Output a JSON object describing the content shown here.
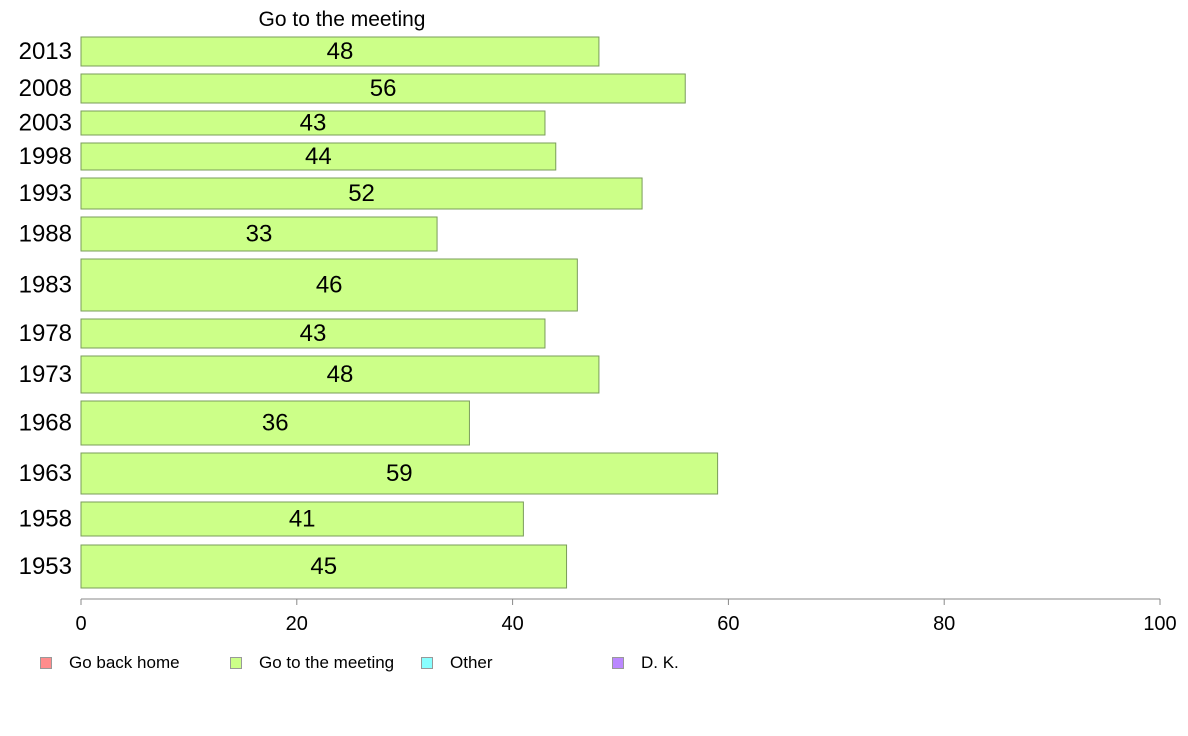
{
  "chart_data": {
    "type": "bar",
    "orientation": "horizontal",
    "stacked": true,
    "categories": [
      "2013",
      "2008",
      "2003",
      "1998",
      "1993",
      "1988",
      "1983",
      "1978",
      "1973",
      "1968",
      "1963",
      "1958",
      "1953"
    ],
    "series": [
      {
        "name": "Go back home",
        "color": "#ff8c8c",
        "values": [
          null,
          null,
          null,
          null,
          null,
          null,
          null,
          null,
          null,
          null,
          null,
          null,
          null
        ]
      },
      {
        "name": "Go to the meeting",
        "color": "#ccff88",
        "values": [
          48,
          56,
          43,
          44,
          52,
          33,
          46,
          43,
          48,
          36,
          59,
          41,
          45
        ]
      },
      {
        "name": "Other",
        "color": "#88ffff",
        "values": [
          null,
          null,
          null,
          null,
          null,
          null,
          null,
          null,
          null,
          null,
          null,
          null,
          null
        ]
      },
      {
        "name": "D. K.",
        "color": "#bb88ff",
        "values": [
          null,
          null,
          null,
          null,
          null,
          null,
          null,
          null,
          null,
          null,
          null,
          null,
          null
        ]
      }
    ],
    "data_labels": [
      "48",
      "56",
      "43",
      "44",
      "52",
      "33",
      "46",
      "43",
      "48",
      "36",
      "59",
      "41",
      "45"
    ],
    "visible_series_title": "Go to the meeting",
    "xlim": [
      0,
      100
    ],
    "xticks": [
      "0",
      "20",
      "40",
      "60",
      "80",
      "100"
    ],
    "grid": false,
    "legend_position": "bottom"
  }
}
